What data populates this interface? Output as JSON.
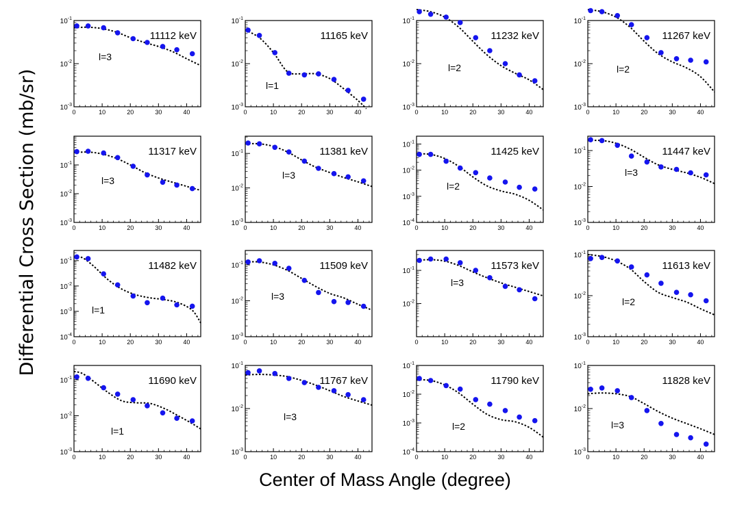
{
  "figure": {
    "xlabel": "Center of Mass Angle (degree)",
    "ylabel": "Differential Cross Section (mb/sr)"
  },
  "style": {
    "marker_color": "#1515ee",
    "curve_color": "#000000",
    "frame_color": "#000000"
  },
  "chart_data": [
    {
      "type": "scatter",
      "title": "11112 keV",
      "annotation": "l=3",
      "xlim": [
        0,
        45
      ],
      "xticks": [
        0,
        10,
        20,
        30,
        40
      ],
      "ylim_log": [
        -3,
        -1
      ],
      "ytick_labels": [
        "10^{-3}",
        "10^{-2}",
        "10^{-1}"
      ],
      "x": [
        1,
        5,
        10.5,
        15.5,
        21,
        26,
        31.5,
        36.5,
        42
      ],
      "y": [
        0.075,
        0.075,
        0.068,
        0.052,
        0.038,
        0.031,
        0.025,
        0.021,
        0.017
      ],
      "curve": {
        "x": [
          0,
          5,
          10,
          15,
          20,
          25,
          30,
          35,
          40,
          45
        ],
        "y": [
          0.068,
          0.07,
          0.065,
          0.054,
          0.04,
          0.031,
          0.025,
          0.019,
          0.013,
          0.009
        ]
      }
    },
    {
      "type": "scatter",
      "title": "11165 keV",
      "annotation": "l=1",
      "xlim": [
        0,
        45
      ],
      "xticks": [
        0,
        10,
        20,
        30,
        40
      ],
      "ylim_log": [
        -3,
        -1
      ],
      "ytick_labels": [
        "10^{-3}",
        "10^{-2}",
        "10^{-1}"
      ],
      "x": [
        1,
        5,
        10.5,
        15.5,
        21,
        26,
        31.5,
        36.5,
        42
      ],
      "y": [
        0.06,
        0.045,
        0.018,
        0.006,
        0.0055,
        0.0058,
        0.0043,
        0.0024,
        0.0015
      ],
      "curve": {
        "x": [
          0,
          5,
          10,
          15,
          20,
          25,
          30,
          35,
          40,
          43
        ],
        "y": [
          0.06,
          0.04,
          0.018,
          0.0065,
          0.0058,
          0.0058,
          0.0045,
          0.0026,
          0.0014,
          0.0009
        ]
      }
    },
    {
      "type": "scatter",
      "title": "11232 keV",
      "annotation": "l=2",
      "xlim": [
        0,
        45
      ],
      "xticks": [
        0,
        10,
        20,
        30,
        40
      ],
      "ylim_log": [
        -3,
        -1
      ],
      "ytick_labels": [
        "10^{-3}",
        "10^{-2}",
        "10^{-1}"
      ],
      "x": [
        1,
        5,
        10.5,
        15.5,
        21,
        26,
        31.5,
        36.5,
        42
      ],
      "y": [
        0.16,
        0.14,
        0.12,
        0.09,
        0.04,
        0.02,
        0.01,
        0.0055,
        0.004
      ],
      "curve": {
        "x": [
          0,
          5,
          10,
          15,
          20,
          25,
          30,
          35,
          40,
          45
        ],
        "y": [
          0.18,
          0.16,
          0.12,
          0.07,
          0.033,
          0.016,
          0.009,
          0.006,
          0.0042,
          0.0025
        ]
      }
    },
    {
      "type": "scatter",
      "title": "11267 keV",
      "annotation": "l=2",
      "xlim": [
        0,
        45
      ],
      "xticks": [
        0,
        10,
        20,
        30,
        40
      ],
      "ylim_log": [
        -3,
        -1
      ],
      "ytick_labels": [
        "10^{-3}",
        "10^{-2}",
        "10^{-1}"
      ],
      "x": [
        1,
        5,
        10.5,
        15.5,
        21,
        26,
        31.5,
        36.5,
        42
      ],
      "y": [
        0.17,
        0.16,
        0.13,
        0.08,
        0.04,
        0.018,
        0.013,
        0.012,
        0.011
      ],
      "curve": {
        "x": [
          0,
          5,
          10,
          15,
          20,
          25,
          30,
          35,
          40,
          45
        ],
        "y": [
          0.18,
          0.16,
          0.12,
          0.07,
          0.033,
          0.017,
          0.011,
          0.008,
          0.005,
          0.0022
        ]
      }
    },
    {
      "type": "scatter",
      "title": "11317 keV",
      "annotation": "l=3",
      "xlim": [
        0,
        45
      ],
      "xticks": [
        0,
        10,
        20,
        30,
        40
      ],
      "ylim_log": [
        -3,
        0
      ],
      "ytick_labels": [
        "10^{-3}",
        "10^{-2}",
        "10^{-1}"
      ],
      "x": [
        1,
        5,
        10.5,
        15.5,
        21,
        26,
        31.5,
        36.5,
        42
      ],
      "y": [
        0.29,
        0.3,
        0.26,
        0.18,
        0.09,
        0.045,
        0.025,
        0.02,
        0.015
      ],
      "curve": {
        "x": [
          0,
          5,
          10,
          15,
          20,
          25,
          30,
          35,
          40,
          45
        ],
        "y": [
          0.27,
          0.28,
          0.24,
          0.17,
          0.1,
          0.055,
          0.035,
          0.025,
          0.018,
          0.013
        ]
      }
    },
    {
      "type": "scatter",
      "title": "11381 keV",
      "annotation": "l=3",
      "xlim": [
        0,
        45
      ],
      "xticks": [
        0,
        10,
        20,
        30,
        40
      ],
      "ylim_log": [
        -3,
        -0.5
      ],
      "ytick_labels": [
        "10^{-3}",
        "10^{-2}",
        "10^{-1}"
      ],
      "x": [
        1,
        5,
        10.5,
        15.5,
        21,
        26,
        31.5,
        36.5,
        42
      ],
      "y": [
        0.2,
        0.19,
        0.15,
        0.11,
        0.06,
        0.037,
        0.026,
        0.021,
        0.016
      ],
      "curve": {
        "x": [
          0,
          5,
          10,
          15,
          20,
          25,
          30,
          35,
          40,
          45
        ],
        "y": [
          0.19,
          0.19,
          0.16,
          0.11,
          0.065,
          0.04,
          0.028,
          0.02,
          0.015,
          0.011
        ]
      }
    },
    {
      "type": "scatter",
      "title": "11425 keV",
      "annotation": "l=2",
      "xlim": [
        0,
        45
      ],
      "xticks": [
        0,
        10,
        20,
        30,
        40
      ],
      "ylim_log": [
        -4,
        -0.7
      ],
      "ytick_labels": [
        "10^{-4}",
        "10^{-3}",
        "10^{-2}",
        "10^{-1}"
      ],
      "x": [
        1,
        5,
        10.5,
        15.5,
        21,
        26,
        31.5,
        36.5,
        42
      ],
      "y": [
        0.04,
        0.04,
        0.022,
        0.012,
        0.008,
        0.005,
        0.0035,
        0.0022,
        0.0019
      ],
      "curve": {
        "x": [
          0,
          5,
          10,
          15,
          20,
          25,
          30,
          35,
          40,
          45
        ],
        "y": [
          0.043,
          0.04,
          0.028,
          0.014,
          0.0055,
          0.0025,
          0.0016,
          0.0012,
          0.0007,
          0.0003
        ]
      }
    },
    {
      "type": "scatter",
      "title": "11447 keV",
      "annotation": "l=3",
      "xlim": [
        0,
        45
      ],
      "xticks": [
        0,
        10,
        20,
        30,
        40
      ],
      "ylim_log": [
        -3,
        -0.6
      ],
      "ytick_labels": [
        "10^{-3}",
        "10^{-2}",
        "10^{-1}"
      ],
      "x": [
        1,
        5,
        10.5,
        15.5,
        21,
        26,
        31.5,
        36.5,
        42
      ],
      "y": [
        0.2,
        0.19,
        0.14,
        0.07,
        0.048,
        0.035,
        0.03,
        0.024,
        0.021
      ],
      "curve": {
        "x": [
          0,
          5,
          10,
          15,
          20,
          25,
          30,
          35,
          40,
          45
        ],
        "y": [
          0.19,
          0.19,
          0.16,
          0.11,
          0.065,
          0.04,
          0.03,
          0.024,
          0.018,
          0.012
        ]
      }
    },
    {
      "type": "scatter",
      "title": "11482 keV",
      "annotation": "l=1",
      "xlim": [
        0,
        45
      ],
      "xticks": [
        0,
        10,
        20,
        30,
        40
      ],
      "ylim_log": [
        -4,
        -0.6
      ],
      "ytick_labels": [
        "10^{-4}",
        "10^{-3}",
        "10^{-2}",
        "10^{-1}"
      ],
      "x": [
        1,
        5,
        10.5,
        15.5,
        21,
        26,
        31.5,
        36.5,
        42
      ],
      "y": [
        0.14,
        0.12,
        0.03,
        0.011,
        0.004,
        0.0022,
        0.0033,
        0.0018,
        0.0016
      ],
      "curve": {
        "x": [
          0,
          3,
          7,
          12,
          17,
          22,
          27,
          32,
          37,
          42,
          45
        ],
        "y": [
          0.14,
          0.13,
          0.06,
          0.018,
          0.0075,
          0.0045,
          0.0034,
          0.0029,
          0.0022,
          0.0011,
          0.00035
        ]
      }
    },
    {
      "type": "scatter",
      "title": "11509 keV",
      "annotation": "l=3",
      "xlim": [
        0,
        45
      ],
      "xticks": [
        0,
        10,
        20,
        30,
        40
      ],
      "ylim_log": [
        -3,
        -0.6
      ],
      "ytick_labels": [
        "10^{-3}",
        "10^{-2}",
        "10^{-1}"
      ],
      "x": [
        1,
        5,
        10.5,
        15.5,
        21,
        26,
        31.5,
        36.5,
        42
      ],
      "y": [
        0.12,
        0.13,
        0.11,
        0.08,
        0.037,
        0.017,
        0.0095,
        0.009,
        0.007
      ],
      "curve": {
        "x": [
          0,
          5,
          10,
          15,
          20,
          25,
          30,
          35,
          40,
          45
        ],
        "y": [
          0.12,
          0.12,
          0.1,
          0.07,
          0.042,
          0.025,
          0.016,
          0.012,
          0.008,
          0.0055
        ]
      }
    },
    {
      "type": "scatter",
      "title": "11573 keV",
      "annotation": "l=3",
      "xlim": [
        0,
        45
      ],
      "xticks": [
        0,
        10,
        20,
        30,
        40
      ],
      "ylim_log": [
        -3,
        -0.4
      ],
      "ytick_labels": [
        "10^{-2}",
        "10^{-1}"
      ],
      "x": [
        1,
        5,
        10.5,
        15.5,
        21,
        26,
        31.5,
        36.5,
        42
      ],
      "y": [
        0.2,
        0.22,
        0.22,
        0.17,
        0.1,
        0.06,
        0.033,
        0.026,
        0.014
      ],
      "curve": {
        "x": [
          0,
          5,
          10,
          15,
          20,
          25,
          30,
          35,
          40,
          45
        ],
        "y": [
          0.2,
          0.21,
          0.19,
          0.14,
          0.09,
          0.06,
          0.042,
          0.031,
          0.023,
          0.017
        ]
      }
    },
    {
      "type": "scatter",
      "title": "11613 keV",
      "annotation": "l=2",
      "xlim": [
        0,
        45
      ],
      "xticks": [
        0,
        10,
        20,
        30,
        40
      ],
      "ylim_log": [
        -3,
        -0.9
      ],
      "ytick_labels": [
        "10^{-3}",
        "10^{-2}",
        "10^{-1}"
      ],
      "x": [
        1,
        5,
        10.5,
        15.5,
        21,
        26,
        31.5,
        36.5,
        42
      ],
      "y": [
        0.08,
        0.085,
        0.07,
        0.05,
        0.032,
        0.02,
        0.012,
        0.0105,
        0.0075
      ],
      "curve": {
        "x": [
          0,
          5,
          10,
          15,
          20,
          25,
          30,
          35,
          40,
          45
        ],
        "y": [
          0.1,
          0.09,
          0.07,
          0.045,
          0.022,
          0.012,
          0.009,
          0.007,
          0.0048,
          0.0034
        ]
      }
    },
    {
      "type": "scatter",
      "title": "11690 keV",
      "annotation": "l=1",
      "xlim": [
        0,
        45
      ],
      "xticks": [
        0,
        10,
        20,
        30,
        40
      ],
      "ylim_log": [
        -3,
        -0.6
      ],
      "ytick_labels": [
        "10^{-3}",
        "10^{-2}",
        "10^{-1}"
      ],
      "x": [
        1,
        5,
        10.5,
        15.5,
        21,
        26,
        31.5,
        36.5,
        42
      ],
      "y": [
        0.12,
        0.11,
        0.06,
        0.04,
        0.028,
        0.019,
        0.012,
        0.0085,
        0.0072
      ],
      "curve": {
        "x": [
          0,
          3,
          7,
          12,
          17,
          22,
          27,
          32,
          37,
          42,
          45
        ],
        "y": [
          0.17,
          0.15,
          0.09,
          0.045,
          0.026,
          0.023,
          0.022,
          0.016,
          0.01,
          0.006,
          0.0043
        ]
      }
    },
    {
      "type": "scatter",
      "title": "11767 keV",
      "annotation": "l=3",
      "xlim": [
        0,
        45
      ],
      "xticks": [
        0,
        10,
        20,
        30,
        40
      ],
      "ylim_log": [
        -3,
        -1
      ],
      "ytick_labels": [
        "10^{-3}",
        "10^{-2}",
        "10^{-1}"
      ],
      "x": [
        1,
        5,
        10.5,
        15.5,
        21,
        26,
        31.5,
        36.5,
        42
      ],
      "y": [
        0.068,
        0.075,
        0.065,
        0.05,
        0.04,
        0.031,
        0.026,
        0.021,
        0.016
      ],
      "curve": {
        "x": [
          0,
          5,
          10,
          15,
          20,
          25,
          30,
          35,
          40,
          45
        ],
        "y": [
          0.06,
          0.062,
          0.06,
          0.055,
          0.045,
          0.035,
          0.026,
          0.019,
          0.015,
          0.012
        ]
      }
    },
    {
      "type": "scatter",
      "title": "11790 keV",
      "annotation": "l=2",
      "xlim": [
        0,
        45
      ],
      "xticks": [
        0,
        10,
        20,
        30,
        40
      ],
      "ylim_log": [
        -4,
        -1
      ],
      "ytick_labels": [
        "10^{-4}",
        "10^{-3}",
        "10^{-2}",
        "10^{-1}"
      ],
      "x": [
        1,
        5,
        10.5,
        15.5,
        21,
        26,
        31.5,
        36.5,
        42
      ],
      "y": [
        0.035,
        0.03,
        0.02,
        0.015,
        0.0065,
        0.0045,
        0.0027,
        0.0016,
        0.0012
      ],
      "curve": {
        "x": [
          0,
          5,
          10,
          15,
          20,
          25,
          30,
          35,
          40,
          45
        ],
        "y": [
          0.032,
          0.03,
          0.021,
          0.011,
          0.0045,
          0.002,
          0.0013,
          0.0011,
          0.0007,
          0.00032
        ]
      }
    },
    {
      "type": "scatter",
      "title": "11828 keV",
      "annotation": "l=3",
      "xlim": [
        0,
        45
      ],
      "xticks": [
        0,
        10,
        20,
        30,
        40
      ],
      "ylim_log": [
        -3,
        -1
      ],
      "ytick_labels": [
        "10^{-3}",
        "10^{-2}",
        "10^{-1}"
      ],
      "x": [
        1,
        5,
        10.5,
        15.5,
        21,
        26,
        31.5,
        36.5,
        42
      ],
      "y": [
        0.028,
        0.03,
        0.026,
        0.018,
        0.009,
        0.0045,
        0.0025,
        0.0021,
        0.0015
      ],
      "curve": {
        "x": [
          0,
          5,
          10,
          15,
          20,
          25,
          30,
          35,
          40,
          45
        ],
        "y": [
          0.022,
          0.023,
          0.022,
          0.019,
          0.013,
          0.0085,
          0.006,
          0.0045,
          0.0034,
          0.0025
        ]
      }
    }
  ]
}
